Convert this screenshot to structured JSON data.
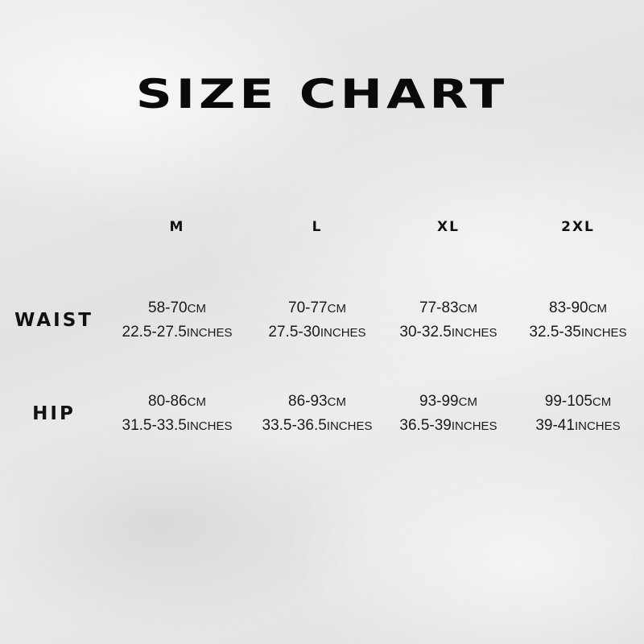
{
  "title": "SIZE CHART",
  "sizes": [
    "M",
    "L",
    "XL",
    "2XL"
  ],
  "rows": [
    {
      "label": "WAIST",
      "cells": [
        {
          "cm": "58-70",
          "inches": "22.5-27.5"
        },
        {
          "cm": "70-77",
          "inches": "27.5-30"
        },
        {
          "cm": "77-83",
          "inches": "30-32.5"
        },
        {
          "cm": "83-90",
          "inches": "32.5-35"
        }
      ]
    },
    {
      "label": "HIP",
      "cells": [
        {
          "cm": "80-86",
          "inches": "31.5-33.5"
        },
        {
          "cm": "86-93",
          "inches": "33.5-36.5"
        },
        {
          "cm": "93-99",
          "inches": "36.5-39"
        },
        {
          "cm": "99-105",
          "inches": "39-41"
        }
      ]
    }
  ],
  "units": {
    "cm": "CM",
    "inches": "INCHES"
  }
}
